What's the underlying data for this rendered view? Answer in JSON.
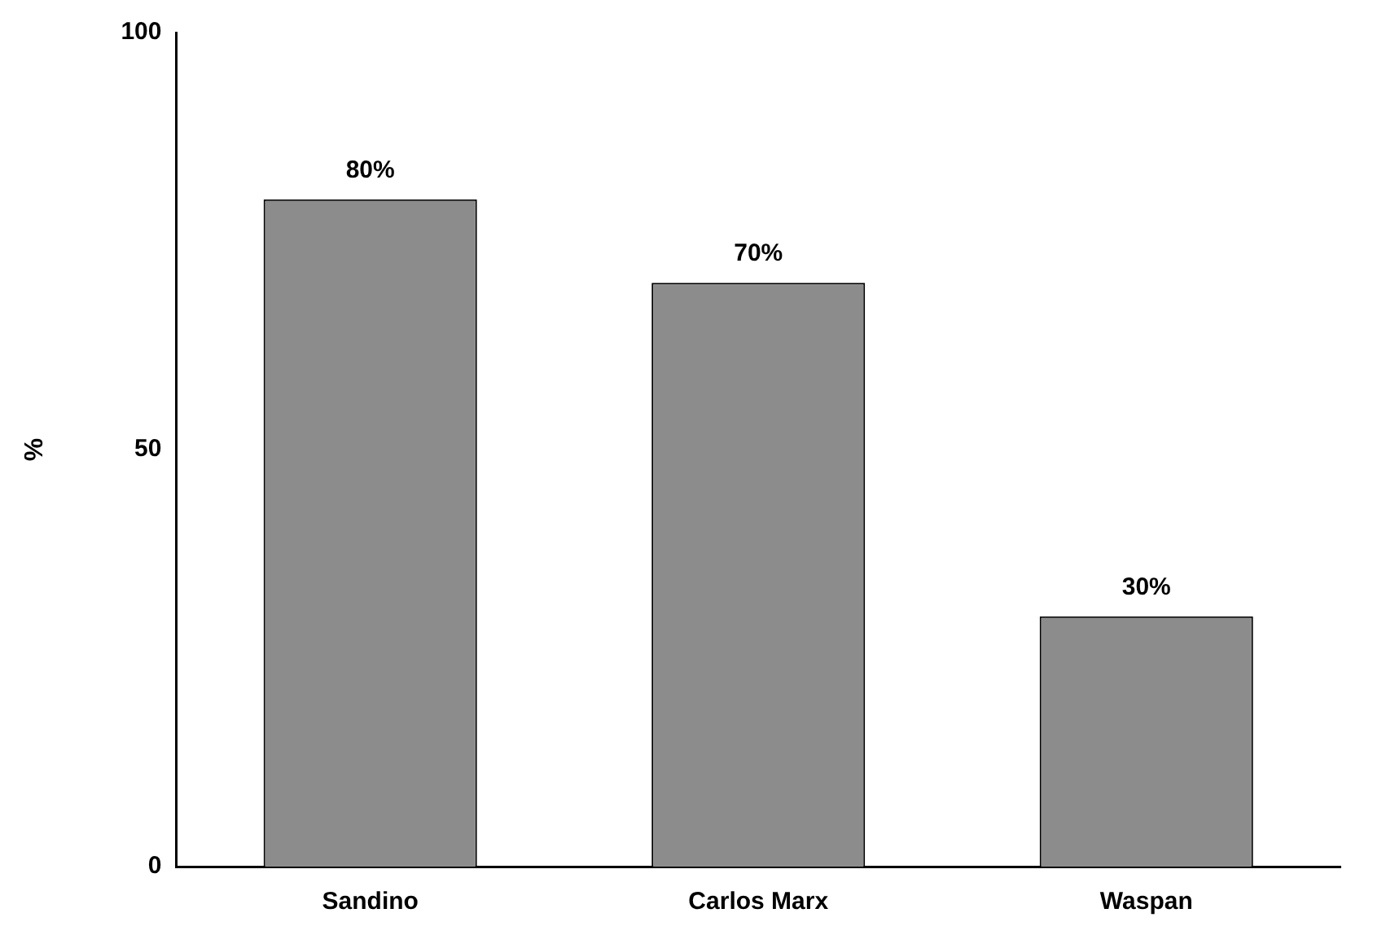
{
  "chart_data": {
    "type": "bar",
    "ylabel": "%",
    "categories": [
      "Sandino",
      "Carlos Marx",
      "Waspan"
    ],
    "values": [
      80,
      70,
      30
    ],
    "value_labels": [
      "80%",
      "70%",
      "30%"
    ],
    "color": "#8c8c8c",
    "ylim": [
      0,
      100
    ],
    "yticks": [
      0,
      50,
      100
    ],
    "grid": false,
    "legend": false
  }
}
